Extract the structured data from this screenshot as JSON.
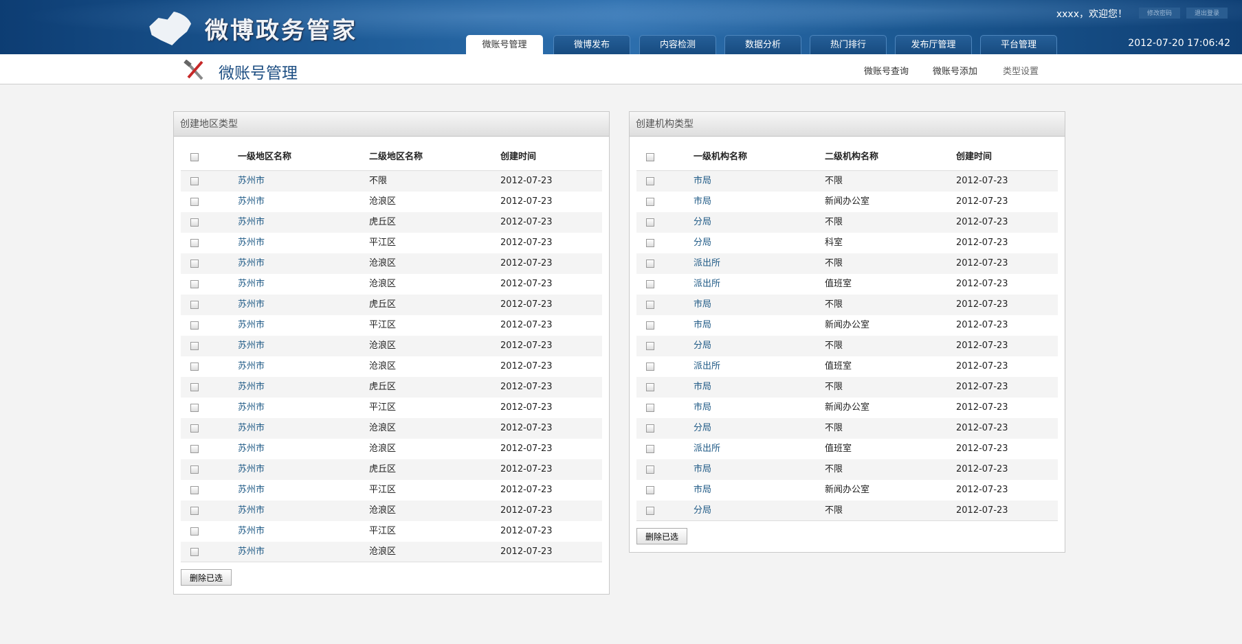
{
  "header": {
    "logo_text": "微博政务管家",
    "welcome": "xxxx，欢迎您！",
    "change_password": "修改密码",
    "logout": "退出登录",
    "datetime": "2012-07-20  17:06:42",
    "tabs": [
      "微账号管理",
      "微博发布",
      "内容检测",
      "数据分析",
      "热门排行",
      "发布厅管理",
      "平台管理"
    ],
    "active_tab": 0
  },
  "subbar": {
    "title": "微账号管理",
    "nav": [
      "微账号查询",
      "微账号添加",
      "类型设置"
    ]
  },
  "region": {
    "title": "创建地区类型",
    "headers": [
      "一级地区名称",
      "二级地区名称",
      "创建时间"
    ],
    "delete_label": "删除已选",
    "rows": [
      [
        "苏州市",
        "不限",
        "2012-07-23"
      ],
      [
        "苏州市",
        "沧浪区",
        "2012-07-23"
      ],
      [
        "苏州市",
        "虎丘区",
        "2012-07-23"
      ],
      [
        "苏州市",
        "平江区",
        "2012-07-23"
      ],
      [
        "苏州市",
        "沧浪区",
        "2012-07-23"
      ],
      [
        "苏州市",
        "沧浪区",
        "2012-07-23"
      ],
      [
        "苏州市",
        "虎丘区",
        "2012-07-23"
      ],
      [
        "苏州市",
        "平江区",
        "2012-07-23"
      ],
      [
        "苏州市",
        "沧浪区",
        "2012-07-23"
      ],
      [
        "苏州市",
        "沧浪区",
        "2012-07-23"
      ],
      [
        "苏州市",
        "虎丘区",
        "2012-07-23"
      ],
      [
        "苏州市",
        "平江区",
        "2012-07-23"
      ],
      [
        "苏州市",
        "沧浪区",
        "2012-07-23"
      ],
      [
        "苏州市",
        "沧浪区",
        "2012-07-23"
      ],
      [
        "苏州市",
        "虎丘区",
        "2012-07-23"
      ],
      [
        "苏州市",
        "平江区",
        "2012-07-23"
      ],
      [
        "苏州市",
        "沧浪区",
        "2012-07-23"
      ],
      [
        "苏州市",
        "平江区",
        "2012-07-23"
      ],
      [
        "苏州市",
        "沧浪区",
        "2012-07-23"
      ]
    ]
  },
  "org": {
    "title": "创建机构类型",
    "headers": [
      "一级机构名称",
      "二级机构名称",
      "创建时间"
    ],
    "delete_label": "删除已选",
    "rows": [
      [
        "市局",
        "不限",
        "2012-07-23"
      ],
      [
        "市局",
        "新闻办公室",
        "2012-07-23"
      ],
      [
        "分局",
        "不限",
        "2012-07-23"
      ],
      [
        "分局",
        "科室",
        "2012-07-23"
      ],
      [
        "派出所",
        "不限",
        "2012-07-23"
      ],
      [
        "派出所",
        "值班室",
        "2012-07-23"
      ],
      [
        "市局",
        "不限",
        "2012-07-23"
      ],
      [
        "市局",
        "新闻办公室",
        "2012-07-23"
      ],
      [
        "分局",
        "不限",
        "2012-07-23"
      ],
      [
        "派出所",
        "值班室",
        "2012-07-23"
      ],
      [
        "市局",
        "不限",
        "2012-07-23"
      ],
      [
        "市局",
        "新闻办公室",
        "2012-07-23"
      ],
      [
        "分局",
        "不限",
        "2012-07-23"
      ],
      [
        "派出所",
        "值班室",
        "2012-07-23"
      ],
      [
        "市局",
        "不限",
        "2012-07-23"
      ],
      [
        "市局",
        "新闻办公室",
        "2012-07-23"
      ],
      [
        "分局",
        "不限",
        "2012-07-23"
      ]
    ]
  },
  "colors": {
    "header_blue": "#1f5d99",
    "link": "#1f5a86",
    "title": "#1e4f83"
  }
}
